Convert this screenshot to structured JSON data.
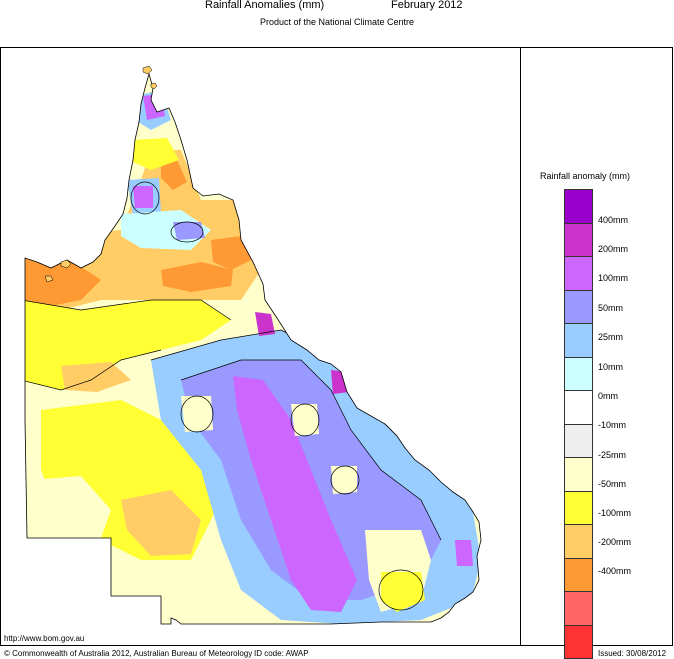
{
  "header": {
    "title": "Rainfall Anomalies (mm)",
    "period": "February 2012",
    "subtitle": "Product of the National Climate Centre"
  },
  "legend": {
    "title": "Rainfall anomaly (mm)",
    "items": [
      {
        "label": "400mm",
        "color": "#9900cc"
      },
      {
        "label": "200mm",
        "color": "#cc33cc"
      },
      {
        "label": "100mm",
        "color": "#cc66ff"
      },
      {
        "label": "50mm",
        "color": "#9999ff"
      },
      {
        "label": "25mm",
        "color": "#99ccff"
      },
      {
        "label": "10mm",
        "color": "#ccffff"
      },
      {
        "label": "0mm",
        "color": "#ffffff"
      },
      {
        "label": "-10mm",
        "color": "#eeeeee"
      },
      {
        "label": "-25mm",
        "color": "#ffffcc"
      },
      {
        "label": "-50mm",
        "color": "#ffff33"
      },
      {
        "label": "-100mm",
        "color": "#ffcc66"
      },
      {
        "label": "-200mm",
        "color": "#ff9933"
      },
      {
        "label": "-400mm",
        "color": "#ff6666"
      },
      {
        "label": "",
        "color": "#ff3333"
      }
    ]
  },
  "footer": {
    "url": "http://www.bom.gov.au",
    "copyright": "© Commonwealth of Australia 2012, Australian Bureau of Meteorology",
    "id_code": "ID code: AWAP",
    "issued": "Issued: 30/08/2012"
  }
}
